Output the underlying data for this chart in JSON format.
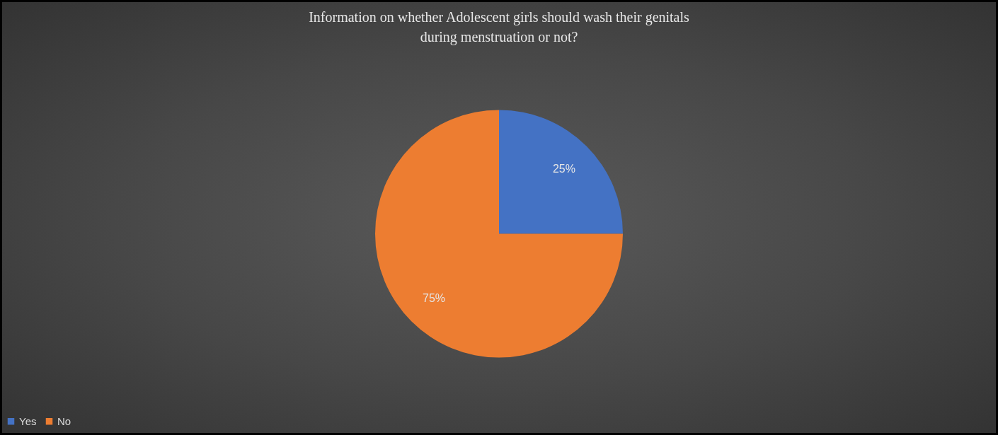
{
  "chart_data": {
    "type": "pie",
    "title": "Information on whether Adolescent girls should wash their genitals during menstruation or not?",
    "categories": [
      "Yes",
      "No"
    ],
    "values": [
      25,
      75
    ],
    "colors": [
      "#4472c4",
      "#ed7d31"
    ],
    "value_labels": [
      "25%",
      "75%"
    ],
    "legend": "bottom"
  }
}
